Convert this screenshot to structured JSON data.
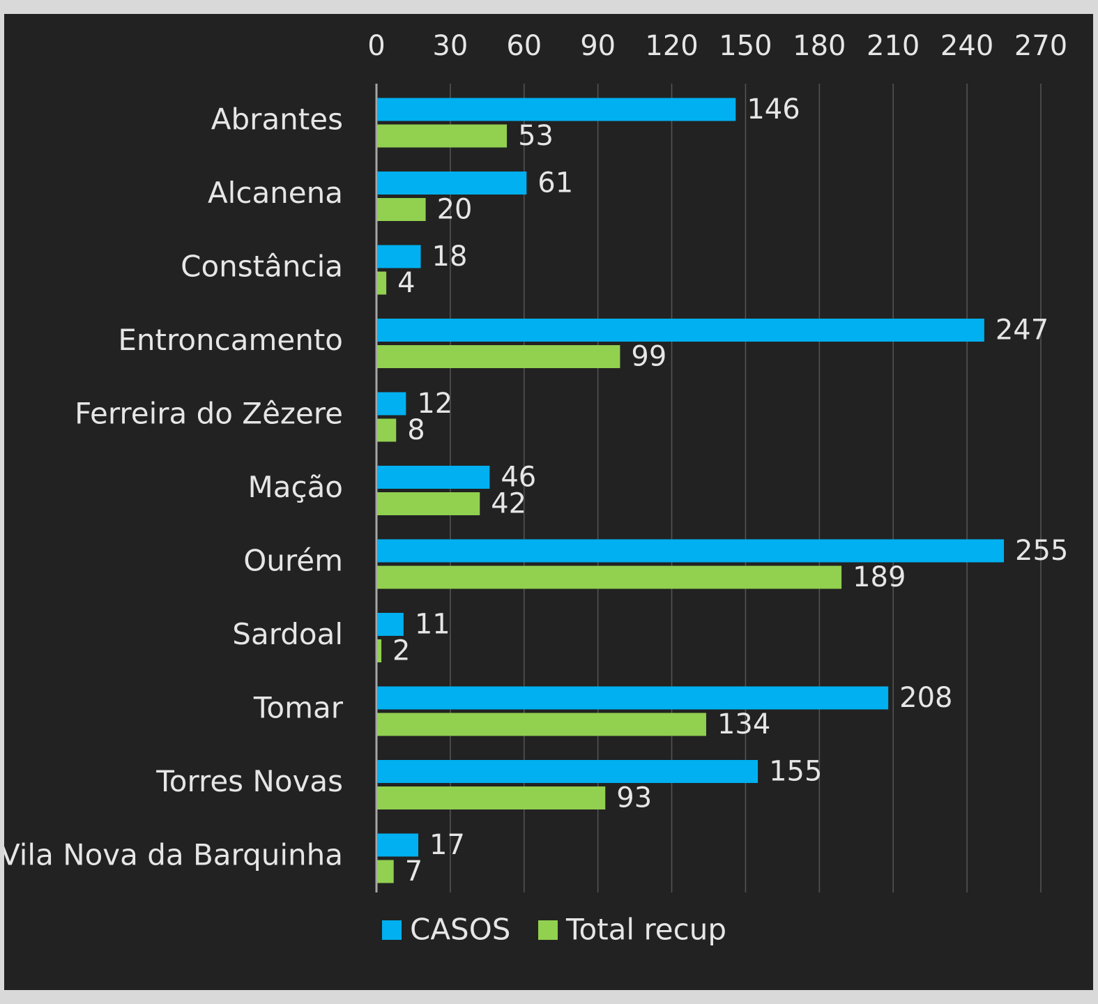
{
  "chart_data": {
    "type": "bar",
    "orientation": "horizontal",
    "title": "",
    "xlabel": "",
    "ylabel": "",
    "xlim": [
      0,
      270
    ],
    "ticks": [
      "0",
      "30",
      "60",
      "90",
      "120",
      "150",
      "180",
      "210",
      "240",
      "270"
    ],
    "tick_values": [
      0,
      30,
      60,
      90,
      120,
      150,
      180,
      210,
      240,
      270
    ],
    "axis_position": "top",
    "grid": true,
    "legend_position": "bottom",
    "categories": [
      "Abrantes",
      "Alcanena",
      "Constância",
      "Entroncamento",
      "Ferreira do Zêzere",
      "Mação",
      "Ourém",
      "Sardoal",
      "Tomar",
      "Torres Novas",
      "Vila Nova da Barquinha"
    ],
    "series": [
      {
        "name": "CASOS",
        "color": "#00b0f0",
        "values": [
          146,
          61,
          18,
          247,
          12,
          46,
          255,
          11,
          208,
          155,
          17
        ]
      },
      {
        "name": "Total recup",
        "color": "#92d050",
        "values": [
          53,
          20,
          4,
          99,
          8,
          42,
          189,
          2,
          134,
          93,
          7
        ]
      }
    ]
  },
  "colors": {
    "background": "#222222",
    "frame": "#d9d9d9",
    "text": "#e6e6e6",
    "grid": "#555555",
    "axis": "#a6a6a6"
  }
}
